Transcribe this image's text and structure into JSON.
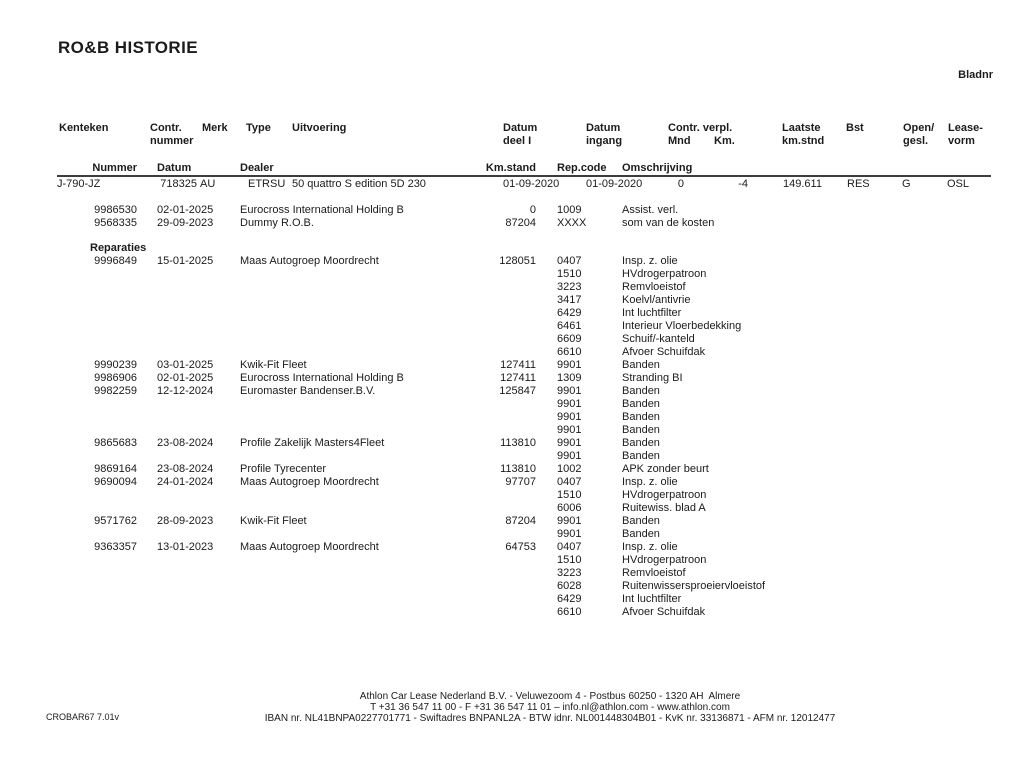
{
  "page": {
    "title": "RO&B HISTORIE",
    "bladnr_label": "Bladnr"
  },
  "contract_header": {
    "kenteken": "Kenteken",
    "contr1": "Contr.",
    "contr2": "nummer",
    "merk": "Merk",
    "type": "Type",
    "uitvoering": "Uitvoering",
    "datum_deel1": "Datum",
    "datum_deel2": "deel I",
    "datum_ingang1": "Datum",
    "datum_ingang2": "ingang",
    "contr_verpl": "Contr. verpl.",
    "mnd": "Mnd",
    "km": "Km.",
    "laatste1": "Laatste",
    "laatste2": "km.stnd",
    "bst": "Bst",
    "open1": "Open/",
    "open2": "gesl.",
    "lease1": "Lease-",
    "lease2": "vorm"
  },
  "detail_header": {
    "nummer": "Nummer",
    "datum": "Datum",
    "dealer": "Dealer",
    "kmstand": "Km.stand",
    "repcode": "Rep.code",
    "omschrijving": "Omschrijving"
  },
  "contract": {
    "kenteken": "J-790-JZ",
    "contr_nummer": "718325",
    "merk": "AU",
    "type": "ETRSU",
    "uitvoering": "50 quattro S edition 5D 230",
    "datum_deel_i": "01-09-2020",
    "datum_ingang": "01-09-2020",
    "mnd": "0",
    "km": "-4",
    "laatste_kmstnd": "149.611",
    "bst": "RES",
    "open_gesl": "G",
    "leasevorm": "OSL"
  },
  "sections": [
    {
      "heading": "",
      "entries": [
        {
          "nummer": "9986530",
          "datum": "02-01-2025",
          "dealer": "Eurocross International Holding B",
          "kmstand": "0",
          "lines": [
            {
              "code": "1009",
              "omschrijving": "Assist. verl."
            }
          ]
        },
        {
          "nummer": "9568335",
          "datum": "29-09-2023",
          "dealer": "Dummy R.O.B.",
          "kmstand": "87204",
          "lines": [
            {
              "code": "XXXX",
              "omschrijving": "som van de kosten"
            }
          ]
        }
      ]
    },
    {
      "heading": "Reparaties",
      "entries": [
        {
          "nummer": "9996849",
          "datum": "15-01-2025",
          "dealer": "Maas Autogroep Moordrecht",
          "kmstand": "128051",
          "lines": [
            {
              "code": "0407",
              "omschrijving": "Insp. z. olie"
            },
            {
              "code": "1510",
              "omschrijving": "HVdrogerpatroon"
            },
            {
              "code": "3223",
              "omschrijving": "Remvloeistof"
            },
            {
              "code": "3417",
              "omschrijving": "Koelvl/antivrie"
            },
            {
              "code": "6429",
              "omschrijving": "Int luchtfilter"
            },
            {
              "code": "6461",
              "omschrijving": "Interieur Vloerbedekking"
            },
            {
              "code": "6609",
              "omschrijving": "Schuif/-kanteld"
            },
            {
              "code": "6610",
              "omschrijving": "Afvoer Schuifdak"
            }
          ]
        },
        {
          "nummer": "9990239",
          "datum": "03-01-2025",
          "dealer": "Kwik-Fit Fleet",
          "kmstand": "127411",
          "lines": [
            {
              "code": "9901",
              "omschrijving": "Banden"
            }
          ]
        },
        {
          "nummer": "9986906",
          "datum": "02-01-2025",
          "dealer": "Eurocross International Holding B",
          "kmstand": "127411",
          "lines": [
            {
              "code": "1309",
              "omschrijving": "Stranding BI"
            }
          ]
        },
        {
          "nummer": "9982259",
          "datum": "12-12-2024",
          "dealer": "Euromaster Bandenser.B.V.",
          "kmstand": "125847",
          "lines": [
            {
              "code": "9901",
              "omschrijving": "Banden"
            },
            {
              "code": "9901",
              "omschrijving": "Banden"
            },
            {
              "code": "9901",
              "omschrijving": "Banden"
            },
            {
              "code": "9901",
              "omschrijving": "Banden"
            }
          ]
        },
        {
          "nummer": "9865683",
          "datum": "23-08-2024",
          "dealer": "Profile Zakelijk Masters4Fleet",
          "kmstand": "113810",
          "lines": [
            {
              "code": "9901",
              "omschrijving": "Banden"
            },
            {
              "code": "9901",
              "omschrijving": "Banden"
            }
          ]
        },
        {
          "nummer": "9869164",
          "datum": "23-08-2024",
          "dealer": "Profile Tyrecenter",
          "kmstand": "113810",
          "lines": [
            {
              "code": "1002",
              "omschrijving": "APK zonder beurt"
            }
          ]
        },
        {
          "nummer": "9690094",
          "datum": "24-01-2024",
          "dealer": "Maas Autogroep Moordrecht",
          "kmstand": "97707",
          "lines": [
            {
              "code": "0407",
              "omschrijving": "Insp. z. olie"
            },
            {
              "code": "1510",
              "omschrijving": "HVdrogerpatroon"
            },
            {
              "code": "6006",
              "omschrijving": "Ruitewiss. blad A"
            }
          ]
        },
        {
          "nummer": "9571762",
          "datum": "28-09-2023",
          "dealer": "Kwik-Fit Fleet",
          "kmstand": "87204",
          "lines": [
            {
              "code": "9901",
              "omschrijving": "Banden"
            },
            {
              "code": "9901",
              "omschrijving": "Banden"
            }
          ]
        },
        {
          "nummer": "9363357",
          "datum": "13-01-2023",
          "dealer": "Maas Autogroep Moordrecht",
          "kmstand": "64753",
          "lines": [
            {
              "code": "0407",
              "omschrijving": "Insp. z. olie"
            },
            {
              "code": "1510",
              "omschrijving": "HVdrogerpatroon"
            },
            {
              "code": "3223",
              "omschrijving": "Remvloeistof"
            },
            {
              "code": "6028",
              "omschrijving": "Ruitenwissersproeiervloeistof"
            },
            {
              "code": "6429",
              "omschrijving": "Int luchtfilter"
            },
            {
              "code": "6610",
              "omschrijving": "Afvoer Schuifdak"
            }
          ]
        }
      ]
    }
  ],
  "footer": {
    "line1": "Athlon Car Lease Nederland B.V. - Veluwezoom 4 - Postbus 60250 - 1320 AH  Almere",
    "line2": "T +31 36 547 11 00 - F +31 36 547 11 01 – info.nl@athlon.com - www.athlon.com",
    "line3": "IBAN nr. NL41BNPA0227701771 - Swiftadres BNPANL2A - BTW idnr. NL001448304B01 - KvK nr. 33136871 - AFM nr. 12012477",
    "program": "CROBAR67 7.01v"
  }
}
